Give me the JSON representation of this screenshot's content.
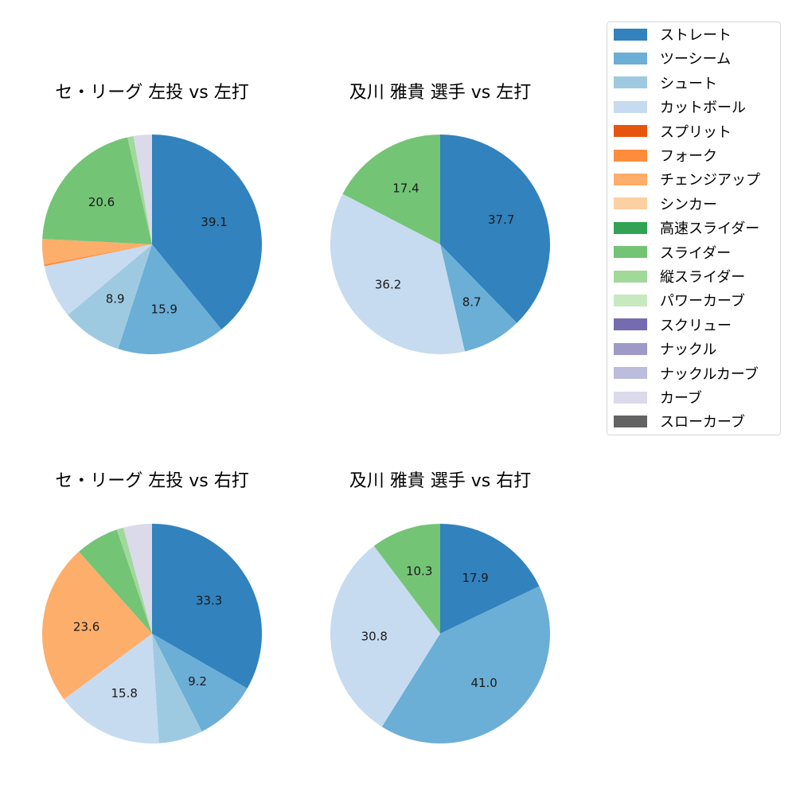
{
  "chart_data": [
    {
      "type": "pie",
      "title": "セ・リーグ 左投 vs 左打",
      "start_angle": 90,
      "direction": "clockwise",
      "slices": [
        {
          "name": "ストレート",
          "value": 39.1,
          "label": "39.1"
        },
        {
          "name": "ツーシーム",
          "value": 15.9,
          "label": "15.9"
        },
        {
          "name": "シュート",
          "value": 8.9,
          "label": "8.9"
        },
        {
          "name": "カットボール",
          "value": 7.9,
          "label": ""
        },
        {
          "name": "フォーク",
          "value": 0.3,
          "label": ""
        },
        {
          "name": "チェンジアップ",
          "value": 3.7,
          "label": ""
        },
        {
          "name": "スライダー",
          "value": 20.6,
          "label": "20.6"
        },
        {
          "name": "縦スライダー",
          "value": 0.9,
          "label": ""
        },
        {
          "name": "カーブ",
          "value": 2.7,
          "label": ""
        }
      ]
    },
    {
      "type": "pie",
      "title": "及川 雅貴 選手 vs 左打",
      "start_angle": 90,
      "direction": "clockwise",
      "slices": [
        {
          "name": "ストレート",
          "value": 37.7,
          "label": "37.7"
        },
        {
          "name": "ツーシーム",
          "value": 8.7,
          "label": "8.7"
        },
        {
          "name": "カットボール",
          "value": 36.2,
          "label": "36.2"
        },
        {
          "name": "スライダー",
          "value": 17.4,
          "label": "17.4"
        }
      ]
    },
    {
      "type": "pie",
      "title": "セ・リーグ 左投 vs 右打",
      "start_angle": 90,
      "direction": "clockwise",
      "slices": [
        {
          "name": "ストレート",
          "value": 33.3,
          "label": "33.3"
        },
        {
          "name": "ツーシーム",
          "value": 9.2,
          "label": "9.2"
        },
        {
          "name": "シュート",
          "value": 6.5,
          "label": ""
        },
        {
          "name": "カットボール",
          "value": 15.8,
          "label": "15.8"
        },
        {
          "name": "チェンジアップ",
          "value": 23.6,
          "label": "23.6"
        },
        {
          "name": "スライダー",
          "value": 6.4,
          "label": ""
        },
        {
          "name": "縦スライダー",
          "value": 1.0,
          "label": ""
        },
        {
          "name": "カーブ",
          "value": 4.2,
          "label": ""
        }
      ]
    },
    {
      "type": "pie",
      "title": "及川 雅貴 選手 vs 右打",
      "start_angle": 90,
      "direction": "clockwise",
      "slices": [
        {
          "name": "ストレート",
          "value": 17.9,
          "label": "17.9"
        },
        {
          "name": "ツーシーム",
          "value": 41.0,
          "label": "41.0"
        },
        {
          "name": "カットボール",
          "value": 30.8,
          "label": "30.8"
        },
        {
          "name": "スライダー",
          "value": 10.3,
          "label": "10.3"
        }
      ]
    }
  ],
  "legend": {
    "position": "upper right",
    "items": [
      {
        "label": "ストレート",
        "color": "#3182bd"
      },
      {
        "label": "ツーシーム",
        "color": "#6baed6"
      },
      {
        "label": "シュート",
        "color": "#9ecae1"
      },
      {
        "label": "カットボール",
        "color": "#c6dbef"
      },
      {
        "label": "スプリット",
        "color": "#e6550d"
      },
      {
        "label": "フォーク",
        "color": "#fd8d3c"
      },
      {
        "label": "チェンジアップ",
        "color": "#fdae6b"
      },
      {
        "label": "シンカー",
        "color": "#fdd0a2"
      },
      {
        "label": "高速スライダー",
        "color": "#31a354"
      },
      {
        "label": "スライダー",
        "color": "#74c476"
      },
      {
        "label": "縦スライダー",
        "color": "#a1d99b"
      },
      {
        "label": "パワーカーブ",
        "color": "#c7e9c0"
      },
      {
        "label": "スクリュー",
        "color": "#756bb1"
      },
      {
        "label": "ナックル",
        "color": "#9e9ac8"
      },
      {
        "label": "ナックルカーブ",
        "color": "#bcbddc"
      },
      {
        "label": "カーブ",
        "color": "#dadaeb"
      },
      {
        "label": "スローカーブ",
        "color": "#636363"
      }
    ]
  }
}
